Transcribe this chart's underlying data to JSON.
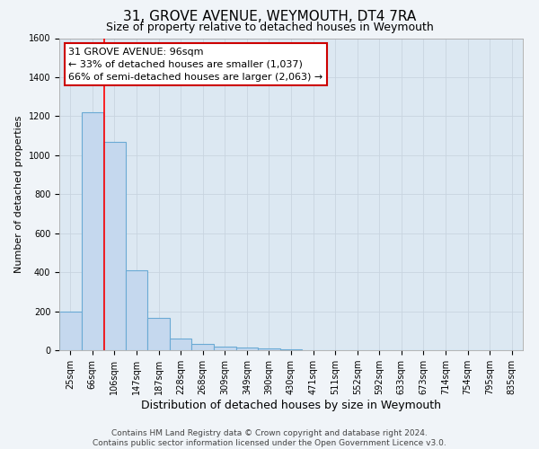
{
  "title": "31, GROVE AVENUE, WEYMOUTH, DT4 7RA",
  "subtitle": "Size of property relative to detached houses in Weymouth",
  "xlabel": "Distribution of detached houses by size in Weymouth",
  "ylabel": "Number of detached properties",
  "categories": [
    "25sqm",
    "66sqm",
    "106sqm",
    "147sqm",
    "187sqm",
    "228sqm",
    "268sqm",
    "309sqm",
    "349sqm",
    "390sqm",
    "430sqm",
    "471sqm",
    "511sqm",
    "552sqm",
    "592sqm",
    "633sqm",
    "673sqm",
    "714sqm",
    "754sqm",
    "795sqm",
    "835sqm"
  ],
  "values": [
    200,
    1220,
    1070,
    410,
    165,
    60,
    30,
    20,
    15,
    8,
    5,
    0,
    0,
    0,
    0,
    0,
    0,
    0,
    0,
    0,
    0
  ],
  "bar_color": "#c5d8ee",
  "bar_edge_color": "#6aaad4",
  "bar_edge_width": 0.8,
  "grid_color": "#c8d4e0",
  "background_color": "#f0f4f8",
  "plot_bg_color": "#dce8f2",
  "ylim": [
    0,
    1600
  ],
  "yticks": [
    0,
    200,
    400,
    600,
    800,
    1000,
    1200,
    1400,
    1600
  ],
  "red_line_x": 1.55,
  "ann_line1": "31 GROVE AVENUE: 96sqm",
  "ann_line2": "← 33% of detached houses are smaller (1,037)",
  "ann_line3": "66% of semi-detached houses are larger (2,063) →",
  "annotation_box_color": "#cc0000",
  "footer": "Contains HM Land Registry data © Crown copyright and database right 2024.\nContains public sector information licensed under the Open Government Licence v3.0.",
  "title_fontsize": 11,
  "subtitle_fontsize": 9,
  "xlabel_fontsize": 9,
  "ylabel_fontsize": 8,
  "tick_fontsize": 7,
  "ann_fontsize": 8,
  "footer_fontsize": 6.5
}
